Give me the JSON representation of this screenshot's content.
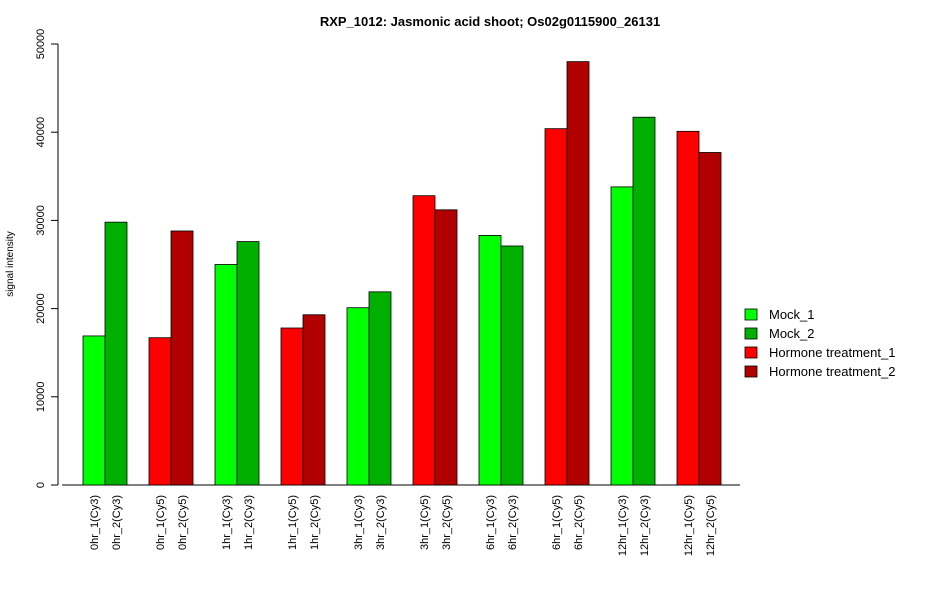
{
  "chart_data": {
    "type": "bar",
    "title": "RXP_1012: Jasmonic acid shoot; Os02g0115900_26131",
    "xlabel": "",
    "ylabel": "signal intensity",
    "ylim": [
      0,
      50000
    ],
    "yticks": [
      0,
      10000,
      20000,
      30000,
      40000,
      50000
    ],
    "grid": false,
    "legend_position": "right",
    "series_colors": {
      "Mock_1": "#00ff00",
      "Mock_2": "#00b000",
      "Hormone treatment_1": "#ff0000",
      "Hormone treatment_2": "#b00000"
    },
    "legend": [
      {
        "name": "Mock_1",
        "color": "#00ff00"
      },
      {
        "name": "Mock_2",
        "color": "#00b000"
      },
      {
        "name": "Hormone treatment_1",
        "color": "#ff0000"
      },
      {
        "name": "Hormone treatment_2",
        "color": "#b00000"
      }
    ],
    "groups": [
      {
        "bars": [
          {
            "label": "0hr_1(Cy3)",
            "value": 16900,
            "series": "Mock_1"
          },
          {
            "label": "0hr_2(Cy3)",
            "value": 29800,
            "series": "Mock_2"
          }
        ]
      },
      {
        "bars": [
          {
            "label": "0hr_1(Cy5)",
            "value": 16700,
            "series": "Hormone treatment_1"
          },
          {
            "label": "0hr_2(Cy5)",
            "value": 28800,
            "series": "Hormone treatment_2"
          }
        ]
      },
      {
        "bars": [
          {
            "label": "1hr_1(Cy3)",
            "value": 25000,
            "series": "Mock_1"
          },
          {
            "label": "1hr_2(Cy3)",
            "value": 27600,
            "series": "Mock_2"
          }
        ]
      },
      {
        "bars": [
          {
            "label": "1hr_1(Cy5)",
            "value": 17800,
            "series": "Hormone treatment_1"
          },
          {
            "label": "1hr_2(Cy5)",
            "value": 19300,
            "series": "Hormone treatment_2"
          }
        ]
      },
      {
        "bars": [
          {
            "label": "3hr_1(Cy3)",
            "value": 20100,
            "series": "Mock_1"
          },
          {
            "label": "3hr_2(Cy3)",
            "value": 21900,
            "series": "Mock_2"
          }
        ]
      },
      {
        "bars": [
          {
            "label": "3hr_1(Cy5)",
            "value": 32800,
            "series": "Hormone treatment_1"
          },
          {
            "label": "3hr_2(Cy5)",
            "value": 31200,
            "series": "Hormone treatment_2"
          }
        ]
      },
      {
        "bars": [
          {
            "label": "6hr_1(Cy3)",
            "value": 28300,
            "series": "Mock_1"
          },
          {
            "label": "6hr_2(Cy3)",
            "value": 27100,
            "series": "Mock_2"
          }
        ]
      },
      {
        "bars": [
          {
            "label": "6hr_1(Cy5)",
            "value": 40400,
            "series": "Hormone treatment_1"
          },
          {
            "label": "6hr_2(Cy5)",
            "value": 48000,
            "series": "Hormone treatment_2"
          }
        ]
      },
      {
        "bars": [
          {
            "label": "12hr_1(Cy3)",
            "value": 33800,
            "series": "Mock_1"
          },
          {
            "label": "12hr_2(Cy3)",
            "value": 41700,
            "series": "Mock_2"
          }
        ]
      },
      {
        "bars": [
          {
            "label": "12hr_1(Cy5)",
            "value": 40100,
            "series": "Hormone treatment_1"
          },
          {
            "label": "12hr_2(Cy5)",
            "value": 37700,
            "series": "Hormone treatment_2"
          }
        ]
      }
    ]
  }
}
